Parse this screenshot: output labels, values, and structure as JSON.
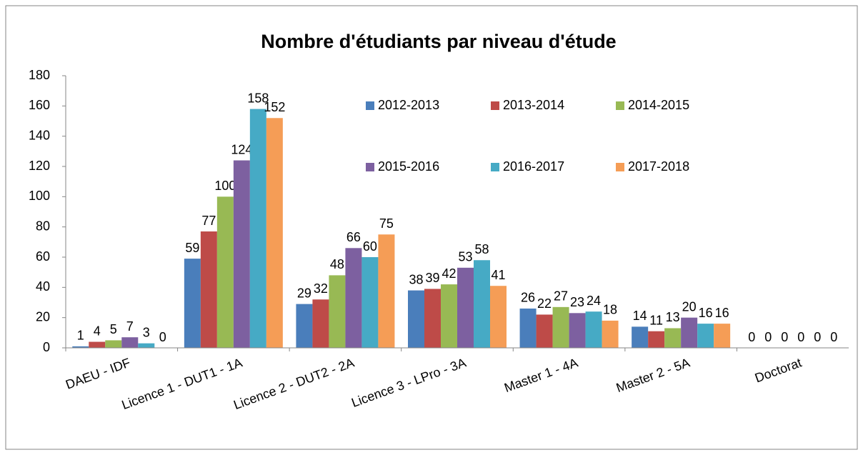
{
  "chart_data": {
    "type": "bar",
    "title": "Nombre d'étudiants par niveau d'étude",
    "categories": [
      "DAEU - IDF",
      "Licence 1 - DUT1 - 1A",
      "Licence 2 - DUT2 - 2A",
      "Licence 3 - LPro - 3A",
      "Master 1 - 4A",
      "Master 2 - 5A",
      "Doctorat"
    ],
    "series": [
      {
        "name": "2012-2013",
        "color": "#4a7ebb",
        "values": [
          1,
          59,
          29,
          38,
          26,
          14,
          0
        ]
      },
      {
        "name": "2013-2014",
        "color": "#be4b48",
        "values": [
          4,
          77,
          32,
          39,
          22,
          11,
          0
        ]
      },
      {
        "name": "2014-2015",
        "color": "#98b954",
        "values": [
          5,
          100,
          48,
          42,
          27,
          13,
          0
        ]
      },
      {
        "name": "2015-2016",
        "color": "#7d60a0",
        "values": [
          7,
          124,
          66,
          53,
          23,
          20,
          0
        ]
      },
      {
        "name": "2016-2017",
        "color": "#46aac5",
        "values": [
          3,
          158,
          60,
          58,
          24,
          16,
          0
        ]
      },
      {
        "name": "2017-2018",
        "color": "#f59d56",
        "values": [
          0,
          152,
          75,
          41,
          18,
          16,
          0
        ]
      }
    ],
    "ylim": [
      0,
      180
    ],
    "yticks": [
      0,
      20,
      40,
      60,
      80,
      100,
      120,
      140,
      160,
      180
    ],
    "grid": false
  }
}
